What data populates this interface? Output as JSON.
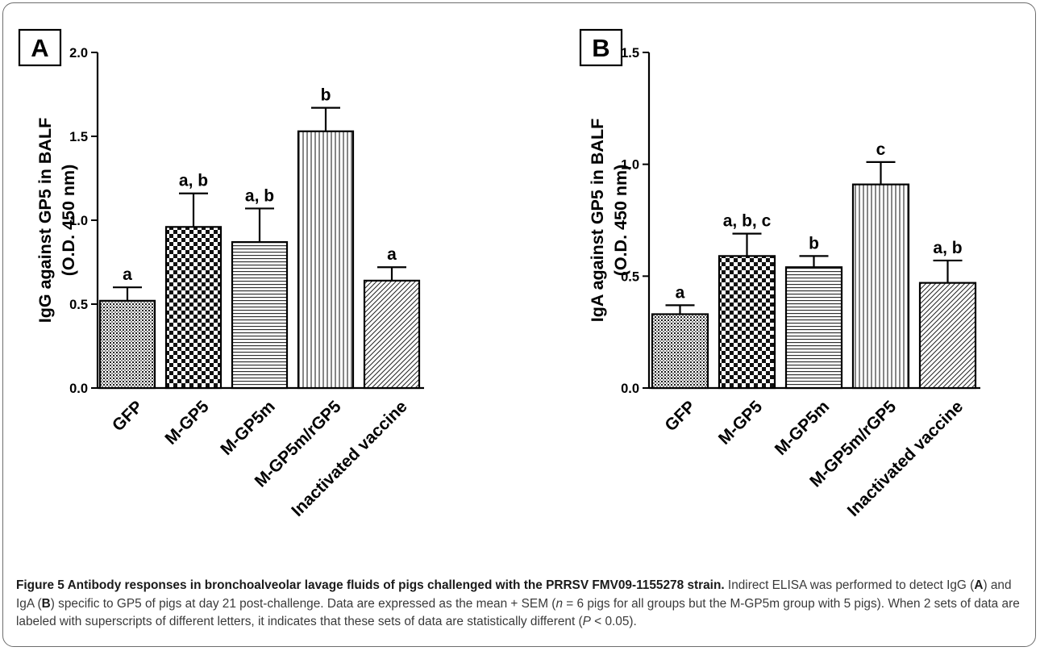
{
  "chart_data": [
    {
      "panel_label": "A",
      "type": "bar",
      "ylabel": [
        "IgG against GP5 in BALF",
        "(O.D. 450 nm)"
      ],
      "xlabel": "",
      "categories": [
        "GFP",
        "M-GP5",
        "M-GP5m",
        "M-GP5m/rGP5",
        "Inactivated vaccine"
      ],
      "values": [
        0.52,
        0.96,
        0.87,
        1.53,
        0.64
      ],
      "errors": [
        0.08,
        0.2,
        0.2,
        0.14,
        0.08
      ],
      "annotations": [
        "a",
        "a, b",
        "a, b",
        "b",
        "a"
      ],
      "ylim": [
        0,
        2.0
      ],
      "yticks": [
        "0.0",
        "0.5",
        "1.0",
        "1.5",
        "2.0"
      ],
      "grid": false
    },
    {
      "panel_label": "B",
      "type": "bar",
      "ylabel": [
        "IgA against GP5 in BALF",
        "(O.D. 450 nm)"
      ],
      "xlabel": "",
      "categories": [
        "GFP",
        "M-GP5",
        "M-GP5m",
        "M-GP5m/rGP5",
        "Inactivated vaccine"
      ],
      "values": [
        0.33,
        0.59,
        0.54,
        0.91,
        0.47
      ],
      "errors": [
        0.04,
        0.1,
        0.05,
        0.1,
        0.1
      ],
      "annotations": [
        "a",
        "a, b, c",
        "b",
        "c",
        "a, b"
      ],
      "ylim": [
        0,
        1.5
      ],
      "yticks": [
        "0.0",
        "0.5",
        "1.0",
        "1.5"
      ],
      "grid": false
    }
  ],
  "caption": {
    "title": "Figure 5 Antibody responses in bronchoalveolar lavage fluids of pigs challenged with the PRRSV FMV09-1155278 strain.",
    "t1": " Indirect ELISA was performed to detect IgG (",
    "b1": "A",
    "t2": ") and IgA (",
    "b2": "B",
    "t3": ") specific to GP5 of pigs at day 21 post-challenge. Data are expressed as the mean + SEM (",
    "i1": "n",
    "t4": " = 6 pigs for all groups but the M-GP5m group with 5 pigs). When 2 sets of data are labeled with superscripts of different letters, it indicates that these sets of data are statistically different (",
    "i2": "P",
    "t5": " < 0.05)."
  }
}
